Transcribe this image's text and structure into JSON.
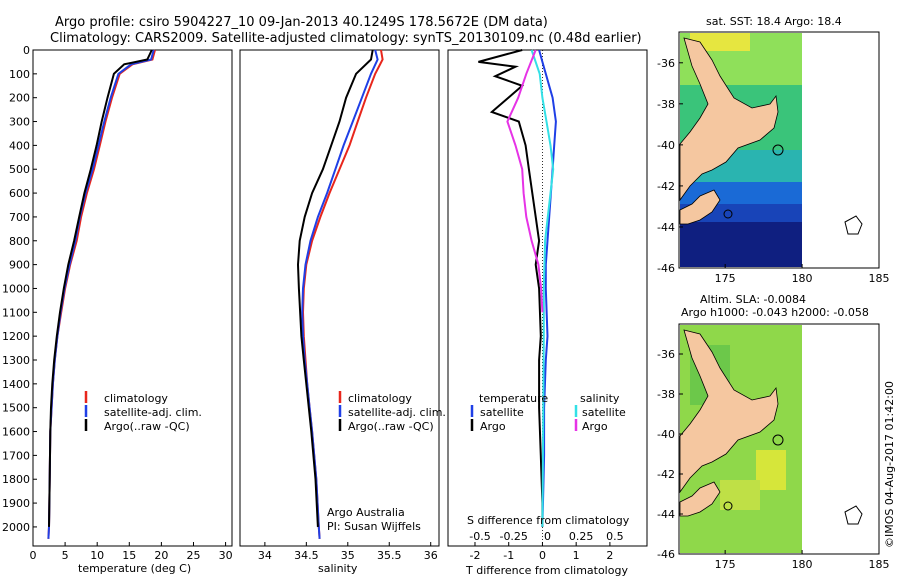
{
  "header": {
    "line1": "Argo profile: csiro 5904227_10 09-Jan-2013 40.1249S 178.5672E (DM data)",
    "line2": "Climatology: CARS2009. Satellite-adjusted climatology: synTS_20130109.nc (0.48d earlier)"
  },
  "colors": {
    "climatology": "#e8261c",
    "satellite": "#1f3fe6",
    "argo": "#000000",
    "sal_satellite": "#33e0e6",
    "sal_argo": "#e633e6",
    "land": "#f5c7a0"
  },
  "chart_data": [
    {
      "id": "temperature",
      "type": "line",
      "xlabel": "temperature (deg C)",
      "ylabel": "",
      "xlim": [
        0,
        31
      ],
      "ylim": [
        2080,
        0
      ],
      "xticks": [
        "0",
        "5",
        "10",
        "15",
        "20",
        "25",
        "30"
      ],
      "yticks": [
        "0",
        "100",
        "200",
        "300",
        "400",
        "500",
        "600",
        "700",
        "800",
        "900",
        "1000",
        "1100",
        "1200",
        "1300",
        "1400",
        "1500",
        "1600",
        "1700",
        "1800",
        "1900",
        "2000"
      ],
      "legend": [
        "climatology",
        "satellite-adj. clim.",
        "Argo(..raw -QC)"
      ],
      "series": [
        {
          "name": "climatology",
          "color_key": "climatology",
          "x": [
            19.0,
            18.6,
            15.5,
            13.5,
            12.3,
            11.3,
            10.4,
            9.5,
            8.4,
            7.5,
            6.8,
            5.8,
            5.0,
            4.4,
            3.8,
            3.4,
            3.1,
            2.9,
            2.7,
            2.6,
            2.5,
            2.4
          ],
          "y": [
            0,
            40,
            60,
            100,
            200,
            300,
            400,
            500,
            600,
            700,
            800,
            900,
            1000,
            1100,
            1200,
            1300,
            1400,
            1500,
            1600,
            1800,
            2000,
            2050
          ]
        },
        {
          "name": "satellite-adj. clim.",
          "color_key": "satellite",
          "x": [
            18.8,
            18.4,
            15.3,
            13.3,
            12.1,
            11.1,
            10.2,
            9.3,
            8.2,
            7.3,
            6.6,
            5.7,
            4.9,
            4.3,
            3.8,
            3.4,
            3.1,
            2.9,
            2.7,
            2.6,
            2.5,
            2.4
          ],
          "y": [
            0,
            40,
            60,
            100,
            200,
            300,
            400,
            500,
            600,
            700,
            800,
            900,
            1000,
            1100,
            1200,
            1300,
            1400,
            1500,
            1600,
            1800,
            2000,
            2050
          ]
        },
        {
          "name": "Argo(..raw -QC)",
          "color_key": "argo",
          "x": [
            18.5,
            17.8,
            14.2,
            12.6,
            11.6,
            10.7,
            9.9,
            9.0,
            8.0,
            7.2,
            6.4,
            5.5,
            4.8,
            4.2,
            3.7,
            3.3,
            3.0,
            2.8,
            2.7,
            2.6,
            2.5
          ],
          "y": [
            0,
            40,
            60,
            100,
            200,
            300,
            400,
            500,
            600,
            700,
            800,
            900,
            1000,
            1100,
            1200,
            1300,
            1400,
            1500,
            1600,
            1800,
            2000
          ]
        }
      ]
    },
    {
      "id": "salinity",
      "type": "line",
      "xlabel": "salinity",
      "ylabel": "",
      "xlim": [
        33.7,
        36.1
      ],
      "ylim": [
        2080,
        0
      ],
      "xticks": [
        "34",
        "34.5",
        "35",
        "35.5",
        "36"
      ],
      "legend": [
        "climatology",
        "satellite-adj. clim.",
        "Argo(..raw -QC)"
      ],
      "annotation": [
        "Argo Australia",
        "PI: Susan Wijffels"
      ],
      "series": [
        {
          "name": "climatology",
          "color_key": "climatology",
          "x": [
            35.4,
            35.42,
            35.33,
            35.22,
            35.12,
            35.02,
            34.9,
            34.78,
            34.67,
            34.57,
            34.5,
            34.47,
            34.46,
            34.47,
            34.49,
            34.51,
            34.54,
            34.57,
            34.62,
            34.65,
            34.66
          ],
          "y": [
            0,
            40,
            100,
            200,
            300,
            400,
            500,
            600,
            700,
            800,
            900,
            1000,
            1100,
            1200,
            1300,
            1400,
            1500,
            1600,
            1800,
            2000,
            2050
          ]
        },
        {
          "name": "satellite-adj. clim.",
          "color_key": "satellite",
          "x": [
            35.33,
            35.36,
            35.28,
            35.17,
            35.06,
            34.95,
            34.85,
            34.75,
            34.64,
            34.55,
            34.49,
            34.46,
            34.45,
            34.46,
            34.48,
            34.51,
            34.54,
            34.57,
            34.62,
            34.65,
            34.66
          ],
          "y": [
            0,
            40,
            100,
            200,
            300,
            400,
            500,
            600,
            700,
            800,
            900,
            1000,
            1100,
            1200,
            1300,
            1400,
            1500,
            1600,
            1800,
            2000,
            2050
          ]
        },
        {
          "name": "Argo(..raw -QC)",
          "color_key": "argo",
          "x": [
            35.3,
            35.28,
            35.1,
            34.98,
            34.9,
            34.8,
            34.7,
            34.57,
            34.48,
            34.42,
            34.4,
            34.41,
            34.44,
            34.47,
            34.5,
            34.53,
            34.56,
            34.61,
            34.64
          ],
          "y": [
            0,
            40,
            100,
            200,
            300,
            400,
            500,
            600,
            700,
            800,
            900,
            1000,
            1200,
            1300,
            1400,
            1500,
            1600,
            1800,
            2000
          ]
        }
      ]
    },
    {
      "id": "difference",
      "type": "line",
      "xlabel": "T difference from climatology",
      "xlabel_top": "S difference from climatology",
      "xlim": [
        -2.8,
        3.1
      ],
      "ylim": [
        2080,
        0
      ],
      "xticks": [
        "-2",
        "-1",
        "0",
        "1",
        "2"
      ],
      "xticks_sal": [
        "-0.5",
        "-0.25",
        "0",
        "0.25",
        "0.5"
      ],
      "legend_temperature": [
        "temperature",
        "satellite",
        "Argo"
      ],
      "legend_salinity": [
        "salinity",
        "satellite",
        "Argo"
      ],
      "series": [
        {
          "name": "T satellite",
          "color_key": "satellite",
          "x": [
            -0.1,
            0.0,
            0.1,
            0.2,
            0.3,
            0.4,
            0.35,
            0.3,
            0.25,
            0.2,
            0.15,
            0.1,
            0.1,
            0.15,
            0.1,
            0.05,
            0.05,
            0.0
          ],
          "y": [
            0,
            50,
            100,
            150,
            200,
            300,
            400,
            500,
            600,
            700,
            800,
            900,
            1000,
            1200,
            1300,
            1500,
            1700,
            2000
          ]
        },
        {
          "name": "T Argo",
          "color_key": "argo",
          "x": [
            -0.6,
            -1.9,
            -0.8,
            -1.4,
            -0.6,
            -1.5,
            -0.7,
            -0.5,
            -0.4,
            -0.3,
            -0.2,
            -0.1,
            -0.2,
            -0.1,
            -0.05,
            -0.1,
            -0.1,
            -0.05,
            0.0,
            0.0
          ],
          "y": [
            0,
            50,
            70,
            110,
            150,
            260,
            300,
            400,
            500,
            600,
            700,
            800,
            900,
            1000,
            1200,
            1300,
            1500,
            1700,
            1900,
            2000
          ]
        },
        {
          "name": "S satellite",
          "color_key": "sal_satellite",
          "x": [
            -0.08,
            -0.02,
            0.0,
            0.03,
            0.06,
            0.08,
            0.06,
            0.04,
            0.02,
            0.01,
            0.01,
            0.0
          ],
          "y": [
            0,
            100,
            200,
            300,
            400,
            500,
            600,
            700,
            800,
            1000,
            1200,
            2000
          ]
        },
        {
          "name": "S Argo",
          "color_key": "sal_argo",
          "x": [
            -0.05,
            -0.12,
            -0.18,
            -0.26,
            -0.2,
            -0.15,
            -0.14,
            -0.12,
            -0.08,
            -0.03,
            -0.01,
            0.0
          ],
          "y": [
            0,
            100,
            200,
            300,
            400,
            500,
            600,
            700,
            800,
            900,
            1000,
            1100
          ]
        }
      ]
    },
    {
      "id": "sst_map",
      "type": "heatmap",
      "title": "sat. SST: 18.4  Argo: 18.4",
      "xlim": [
        172,
        185
      ],
      "ylim": [
        -46,
        -34.5
      ],
      "xticks": [
        "175",
        "180",
        "185"
      ],
      "yticks": [
        "-36",
        "-38",
        "-40",
        "-42",
        "-44",
        "-46"
      ]
    },
    {
      "id": "sla_map",
      "type": "heatmap",
      "title_line1": "Altim. SLA: -0.0084",
      "title_line2": "Argo h1000: -0.043 h2000: -0.058",
      "xlim": [
        172,
        185
      ],
      "ylim": [
        -46,
        -34.5
      ],
      "xticks": [
        "175",
        "180",
        "185"
      ],
      "yticks": [
        "-36",
        "-38",
        "-40",
        "-42",
        "-44",
        "-46"
      ]
    }
  ],
  "footer": {
    "credit": "©IMOS 04-Aug-2017 01:42:00"
  }
}
